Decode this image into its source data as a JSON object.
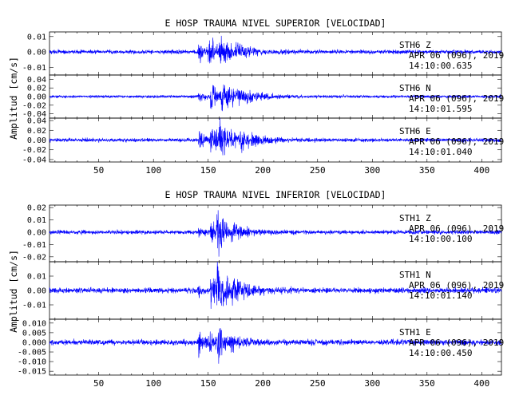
{
  "chart_data": [
    {
      "type": "line",
      "title": "E HOSP TRAUMA NIVEL SUPERIOR [VELOCIDAD]",
      "ylabel": "Amplitud [cm/s]",
      "xlabel": "",
      "xlim": [
        5,
        418
      ],
      "x_ticks": [
        50,
        100,
        150,
        200,
        250,
        300,
        350,
        400
      ],
      "grid": false,
      "line_color": "#0000ff",
      "panels": [
        {
          "station": "STH6",
          "component": "Z",
          "date": "APR 06 (096), 2019",
          "time": "14:10:00.635",
          "ylim": [
            -0.015,
            0.013
          ],
          "y_ticks": [
            -0.01,
            0.0,
            0.01
          ],
          "y_tick_labels": [
            "-0.01",
            "0.00",
            "0.01"
          ],
          "series": [
            {
              "noise": 0.0012,
              "events": [
                {
                  "t": 141,
                  "amp": 0.006,
                  "decay": 5
                },
                {
                  "t": 150,
                  "amp": 0.008,
                  "decay": 8
                },
                {
                  "t": 160,
                  "amp": 0.007,
                  "decay": 12
                },
                {
                  "t": 175,
                  "amp": 0.003,
                  "decay": 12
                }
              ]
            }
          ]
        },
        {
          "station": "STH6",
          "component": "N",
          "date": "APR 06 (096), 2019",
          "time": "14:10:01.595",
          "ylim": [
            -0.05,
            0.05
          ],
          "y_ticks": [
            -0.04,
            -0.02,
            0.0,
            0.02,
            0.04
          ],
          "y_tick_labels": [
            "-0.04",
            "-0.02",
            "0.00",
            "0.02",
            "0.04"
          ],
          "series": [
            {
              "noise": 0.003,
              "events": [
                {
                  "t": 141,
                  "amp": 0.012,
                  "decay": 6
                },
                {
                  "t": 152,
                  "amp": 0.025,
                  "decay": 10
                },
                {
                  "t": 162,
                  "amp": 0.03,
                  "decay": 12
                },
                {
                  "t": 178,
                  "amp": 0.012,
                  "decay": 18
                }
              ]
            }
          ]
        },
        {
          "station": "STH6",
          "component": "E",
          "date": "APR 06 (096), 2019",
          "time": "14:10:01.040",
          "ylim": [
            -0.045,
            0.045
          ],
          "y_ticks": [
            -0.04,
            -0.02,
            0.0,
            0.02,
            0.04
          ],
          "y_tick_labels": [
            "-0.04",
            "-0.02",
            "0.00",
            "0.02",
            "0.04"
          ],
          "series": [
            {
              "noise": 0.0035,
              "events": [
                {
                  "t": 141,
                  "amp": 0.015,
                  "decay": 6
                },
                {
                  "t": 152,
                  "amp": 0.025,
                  "decay": 10
                },
                {
                  "t": 160,
                  "amp": 0.03,
                  "decay": 12
                },
                {
                  "t": 178,
                  "amp": 0.012,
                  "decay": 18
                }
              ]
            }
          ]
        }
      ]
    },
    {
      "type": "line",
      "title": "E HOSP TRAUMA NIVEL INFERIOR [VELOCIDAD]",
      "ylabel": "Amplitud [cm/s]",
      "xlabel": "",
      "xlim": [
        5,
        418
      ],
      "x_ticks": [
        50,
        100,
        150,
        200,
        250,
        300,
        350,
        400
      ],
      "grid": false,
      "line_color": "#0000ff",
      "panels": [
        {
          "station": "STH1",
          "component": "Z",
          "date": "APR 06 (096), 2019",
          "time": "14:10:00.100",
          "ylim": [
            -0.024,
            0.022
          ],
          "y_ticks": [
            -0.02,
            -0.01,
            0.0,
            0.01,
            0.02
          ],
          "y_tick_labels": [
            "-0.02",
            "-0.01",
            "0.00",
            "0.01",
            "0.02"
          ],
          "series": [
            {
              "noise": 0.0015,
              "events": [
                {
                  "t": 141,
                  "amp": 0.004,
                  "decay": 6
                },
                {
                  "t": 152,
                  "amp": 0.008,
                  "decay": 8
                },
                {
                  "t": 158,
                  "amp": 0.016,
                  "decay": 7
                },
                {
                  "t": 170,
                  "amp": 0.004,
                  "decay": 15
                }
              ]
            }
          ]
        },
        {
          "station": "STH1",
          "component": "N",
          "date": "APR 06 (096), 2019",
          "time": "14:10:01.140",
          "ylim": [
            -0.02,
            0.02
          ],
          "y_ticks": [
            -0.01,
            0.0,
            0.01
          ],
          "y_tick_labels": [
            "-0.01",
            "0.00",
            "0.01"
          ],
          "series": [
            {
              "noise": 0.0018,
              "events": [
                {
                  "t": 141,
                  "amp": 0.004,
                  "decay": 6
                },
                {
                  "t": 152,
                  "amp": 0.01,
                  "decay": 8
                },
                {
                  "t": 158,
                  "amp": 0.014,
                  "decay": 9
                },
                {
                  "t": 172,
                  "amp": 0.005,
                  "decay": 15
                }
              ]
            }
          ]
        },
        {
          "station": "STH1",
          "component": "E",
          "date": "APR 06 (096), 2019",
          "time": "14:10:00.450",
          "ylim": [
            -0.017,
            0.012
          ],
          "y_ticks": [
            -0.015,
            -0.01,
            -0.005,
            0.0,
            0.005,
            0.01
          ],
          "y_tick_labels": [
            "-0.015",
            "-0.010",
            "-0.005",
            "0.000",
            "0.005",
            "0.010"
          ],
          "series": [
            {
              "noise": 0.0013,
              "events": [
                {
                  "t": 141,
                  "amp": 0.008,
                  "decay": 4
                },
                {
                  "t": 150,
                  "amp": 0.005,
                  "decay": 8
                },
                {
                  "t": 158,
                  "amp": 0.009,
                  "decay": 6
                },
                {
                  "t": 170,
                  "amp": 0.002,
                  "decay": 15
                }
              ]
            }
          ]
        }
      ]
    }
  ]
}
